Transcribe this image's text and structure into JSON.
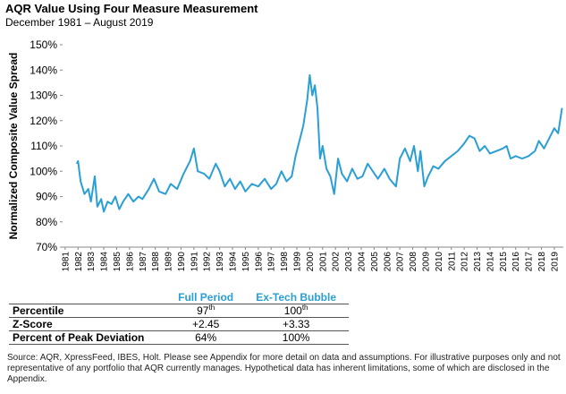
{
  "chart_data": {
    "type": "line",
    "title": "AQR Value Using Four Measure Measurement",
    "subtitle": "December 1981 – August 2019",
    "y_label": "Normalized Composite Value Spread",
    "color": "#2a9fd6",
    "x": [
      1981.9,
      1982.0,
      1982.2,
      1982.5,
      1982.8,
      1983.0,
      1983.3,
      1983.5,
      1983.8,
      1984.0,
      1984.3,
      1984.6,
      1984.9,
      1985.2,
      1985.5,
      1985.9,
      1986.3,
      1986.7,
      1987.0,
      1987.5,
      1987.9,
      1988.3,
      1988.8,
      1989.2,
      1989.7,
      1990.2,
      1990.7,
      1991.0,
      1991.3,
      1991.8,
      1992.2,
      1992.7,
      1993.0,
      1993.4,
      1993.8,
      1994.2,
      1994.6,
      1995.0,
      1995.5,
      1996.0,
      1996.5,
      1997.0,
      1997.4,
      1997.8,
      1998.2,
      1998.6,
      1998.9,
      1999.2,
      1999.5,
      1999.8,
      2000.0,
      2000.2,
      2000.4,
      2000.6,
      2000.8,
      2001.0,
      2001.3,
      2001.6,
      2001.9,
      2002.2,
      2002.5,
      2002.9,
      2003.3,
      2003.7,
      2004.1,
      2004.5,
      2004.9,
      2005.3,
      2005.8,
      2006.2,
      2006.7,
      2007.0,
      2007.4,
      2007.8,
      2008.1,
      2008.4,
      2008.6,
      2008.9,
      2009.2,
      2009.6,
      2010.0,
      2010.5,
      2011.0,
      2011.5,
      2012.0,
      2012.4,
      2012.8,
      2013.2,
      2013.6,
      2014.0,
      2014.5,
      2015.0,
      2015.3,
      2015.6,
      2016.0,
      2016.5,
      2017.0,
      2017.5,
      2017.8,
      2018.2,
      2018.6,
      2019.0,
      2019.3,
      2019.6
    ],
    "values": [
      103,
      104,
      96,
      91,
      93,
      88,
      98,
      86,
      89,
      84,
      88,
      87,
      90,
      85,
      88,
      91,
      88,
      90,
      89,
      93,
      97,
      92,
      91,
      95,
      93,
      99,
      104,
      109,
      100,
      99,
      97,
      103,
      100,
      94,
      97,
      93,
      96,
      92,
      95,
      94,
      97,
      93,
      95,
      100,
      96,
      98,
      106,
      112,
      118,
      128,
      138,
      130,
      134,
      125,
      105,
      110,
      101,
      98,
      91,
      105,
      99,
      96,
      101,
      97,
      98,
      103,
      100,
      97,
      101,
      97,
      94,
      105,
      109,
      104,
      110,
      100,
      108,
      94,
      98,
      102,
      101,
      104,
      106,
      108,
      111,
      114,
      113,
      108,
      110,
      107,
      108,
      109,
      110,
      105,
      106,
      105,
      106,
      108,
      112,
      109,
      113,
      117,
      115,
      125
    ],
    "xlim": [
      1980.8,
      2019.7
    ],
    "xticks": [
      1981,
      1982,
      1983,
      1984,
      1985,
      1986,
      1987,
      1988,
      1989,
      1990,
      1991,
      1992,
      1993,
      1994,
      1995,
      1996,
      1997,
      1998,
      1999,
      2000,
      2001,
      2002,
      2003,
      2004,
      2005,
      2006,
      2007,
      2008,
      2009,
      2010,
      2011,
      2012,
      2013,
      2014,
      2015,
      2016,
      2017,
      2018,
      2019
    ],
    "ylim": [
      70,
      150
    ],
    "yticks": [
      {
        "value": 70,
        "label": "70%"
      },
      {
        "value": 80,
        "label": "80%"
      },
      {
        "value": 90,
        "label": "90%"
      },
      {
        "value": 100,
        "label": "100%"
      },
      {
        "value": 110,
        "label": "110%"
      },
      {
        "value": 120,
        "label": "120%"
      },
      {
        "value": 130,
        "label": "130%"
      },
      {
        "value": 140,
        "label": "140%"
      },
      {
        "value": 150,
        "label": "150%"
      }
    ]
  },
  "table": {
    "header": [
      "Full Period",
      "Ex-Tech Bubble"
    ],
    "rows": [
      {
        "label": "Percentile",
        "cells": [
          {
            "text": "97",
            "sup": "th"
          },
          {
            "text": "100",
            "sup": "th"
          }
        ]
      },
      {
        "label": "Z-Score",
        "cells": [
          {
            "text": "+2.45"
          },
          {
            "text": "+3.33"
          }
        ]
      },
      {
        "label": "Percent of Peak Deviation",
        "cells": [
          {
            "text": "64%"
          },
          {
            "text": "100%"
          }
        ]
      }
    ]
  },
  "source": "Source: AQR, XpressFeed, IBES, Holt. Please see Appendix for more detail on data and assumptions. For illustrative purposes only and not representative of any portfolio that AQR currently manages. Hypothetical data has inherent limitations, some of which are disclosed in the Appendix."
}
